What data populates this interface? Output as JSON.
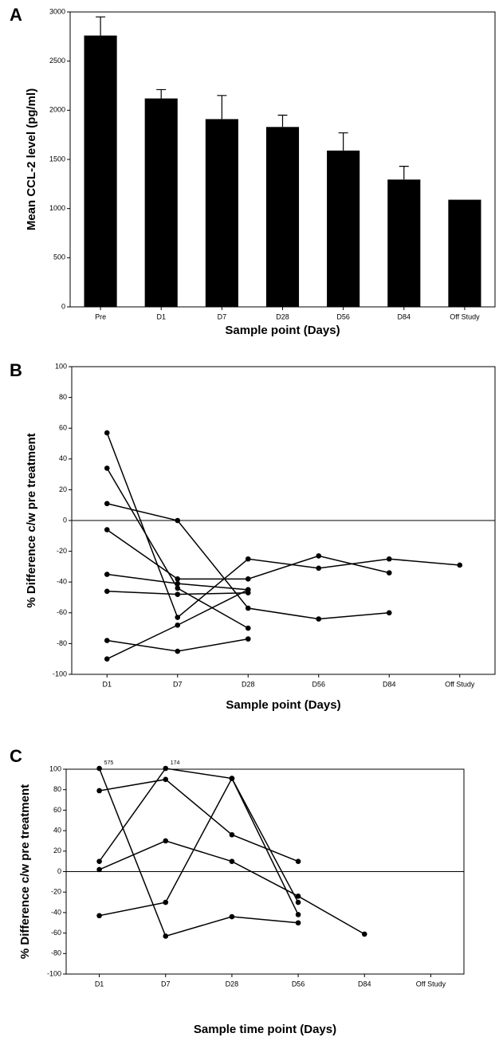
{
  "chart_data": [
    {
      "type": "bar",
      "panel": "A",
      "ylabel": "Mean CCL-2 level (pg/ml)",
      "xlabel": "Sample point (Days)",
      "categories": [
        "Pre",
        "D1",
        "D7",
        "D28",
        "D56",
        "D84",
        "Off Study"
      ],
      "values": [
        2760,
        2120,
        1910,
        1830,
        1590,
        1295,
        1090
      ],
      "errors": [
        190,
        90,
        240,
        120,
        180,
        135,
        null
      ],
      "color": "#000000",
      "ylim": [
        0,
        3000
      ],
      "yticks": [
        0,
        500,
        1000,
        1500,
        2000,
        2500,
        3000
      ]
    },
    {
      "type": "line",
      "panel": "B",
      "ylabel": "% Difference c/w pre treatment",
      "xlabel": "Sample point (Days)",
      "categories": [
        "D1",
        "D7",
        "D28",
        "D56",
        "D84",
        "Off Study"
      ],
      "series": [
        {
          "color": "#000000",
          "values": [
            57,
            -63,
            -25,
            -31,
            -25,
            -29
          ]
        },
        {
          "color": "#000000",
          "values": [
            34,
            -44,
            -70,
            null,
            null,
            null
          ]
        },
        {
          "color": "#000000",
          "values": [
            11,
            0,
            -57,
            -64,
            -60,
            null
          ]
        },
        {
          "color": "#000000",
          "values": [
            -6,
            -38,
            -38,
            -23,
            -34,
            null
          ]
        },
        {
          "color": "#000000",
          "values": [
            -35,
            -41,
            -45,
            null,
            null,
            null
          ]
        },
        {
          "color": "#000000",
          "values": [
            -46,
            -48,
            -47,
            null,
            null,
            null
          ]
        },
        {
          "color": "#000000",
          "values": [
            -78,
            -85,
            -77,
            null,
            null,
            null
          ]
        },
        {
          "color": "#000000",
          "values": [
            -90,
            -68,
            -45,
            null,
            null,
            null
          ]
        }
      ],
      "zero_line": true,
      "ylim": [
        -100,
        100
      ],
      "yticks": [
        -100,
        -80,
        -60,
        -40,
        -20,
        0,
        20,
        40,
        60,
        80,
        100
      ]
    },
    {
      "type": "line",
      "panel": "C",
      "ylabel": "% Difference c/w pre treatment",
      "xlabel": "Sample time point (Days)",
      "categories": [
        "D1",
        "D7",
        "D28",
        "D56",
        "D84",
        "Off Study"
      ],
      "series": [
        {
          "color": "#000000",
          "values": [
            575,
            -63,
            -44,
            -50,
            null,
            null
          ],
          "value_labels": [
            "575",
            null,
            null,
            null,
            null,
            null
          ]
        },
        {
          "color": "#000000",
          "values": [
            79,
            90,
            36,
            10,
            null,
            null
          ]
        },
        {
          "color": "#000000",
          "values": [
            10,
            174,
            91,
            -42,
            null,
            null
          ],
          "value_labels": [
            null,
            "174",
            null,
            null,
            null,
            null
          ]
        },
        {
          "color": "#000000",
          "values": [
            2,
            30,
            10,
            -24,
            -61,
            null
          ]
        },
        {
          "color": "#000000",
          "values": [
            -43,
            -30,
            91,
            -30,
            null,
            null
          ]
        }
      ],
      "zero_line": true,
      "ylim": [
        -100,
        100
      ],
      "yticks": [
        -100,
        -80,
        -60,
        -40,
        -20,
        0,
        20,
        40,
        60,
        80,
        100
      ]
    }
  ]
}
